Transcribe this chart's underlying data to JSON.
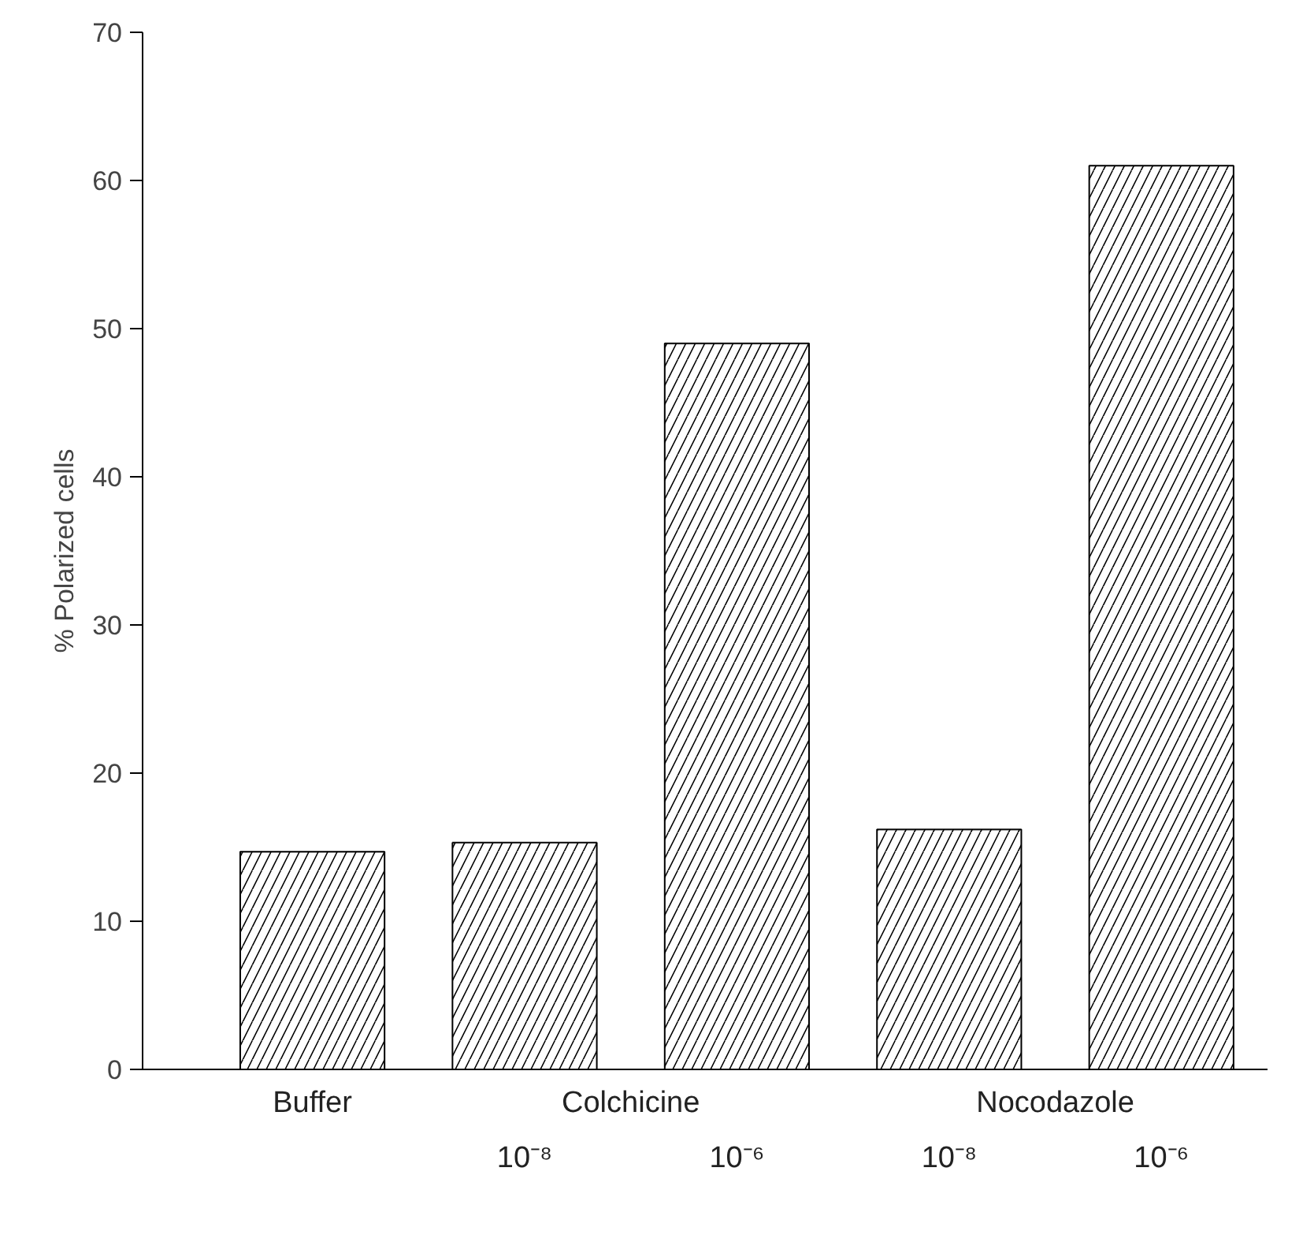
{
  "chart_data": {
    "type": "bar",
    "ylabel": "% Polarized cells",
    "categories": [
      "Buffer",
      "10⁻⁸",
      "10⁻⁶",
      "10⁻⁸",
      "10⁻⁶"
    ],
    "values": [
      14.7,
      15.3,
      49,
      16.2,
      61
    ],
    "color": "#000000",
    "ylim": [
      0,
      70
    ],
    "yticks": [
      0,
      10,
      20,
      30,
      40,
      50,
      60,
      70
    ],
    "annotations": [
      "Colchicine",
      "Nocodazole"
    ],
    "grid": false
  }
}
